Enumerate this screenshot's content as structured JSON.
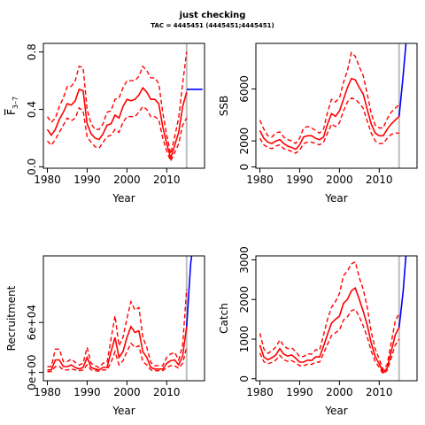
{
  "title": "just checking",
  "subtitle": "TAC = 4445451 (4445451;4445451)",
  "colors": {
    "estimate": "#ff0000",
    "projection": "#0000ff",
    "divider": "#bebebe",
    "axis": "#000000"
  },
  "chart_data": [
    {
      "type": "line",
      "xlabel": "Year",
      "ylabel": "F̅ 3–7",
      "ylabel_main": "F",
      "ylabel_sub": "3–7",
      "xlim": [
        1979,
        2019.5
      ],
      "ylim": [
        -0.01,
        0.86
      ],
      "x_ticks": [
        1980,
        1990,
        2000,
        2010
      ],
      "y_ticks": [
        0.0,
        0.4,
        0.8
      ],
      "y_tick_labels": [
        "0.0",
        "0.4",
        "0.8"
      ],
      "divider_year": 2015,
      "estimate": {
        "x": [
          1980,
          1981,
          1982,
          1983,
          1984,
          1985,
          1986,
          1987,
          1988,
          1989,
          1990,
          1991,
          1992,
          1993,
          1994,
          1995,
          1996,
          1997,
          1998,
          1999,
          2000,
          2001,
          2002,
          2003,
          2004,
          2005,
          2006,
          2007,
          2008,
          2009,
          2010,
          2011,
          2012,
          2013,
          2014,
          2015
        ],
        "mean": [
          0.26,
          0.22,
          0.26,
          0.33,
          0.38,
          0.44,
          0.43,
          0.46,
          0.54,
          0.53,
          0.3,
          0.23,
          0.2,
          0.19,
          0.23,
          0.29,
          0.3,
          0.36,
          0.34,
          0.42,
          0.47,
          0.46,
          0.47,
          0.5,
          0.55,
          0.52,
          0.47,
          0.47,
          0.44,
          0.28,
          0.16,
          0.06,
          0.15,
          0.24,
          0.42,
          0.52
        ],
        "upper": [
          0.35,
          0.31,
          0.34,
          0.42,
          0.48,
          0.56,
          0.56,
          0.6,
          0.7,
          0.69,
          0.4,
          0.3,
          0.26,
          0.26,
          0.3,
          0.38,
          0.39,
          0.47,
          0.48,
          0.55,
          0.6,
          0.6,
          0.6,
          0.63,
          0.7,
          0.67,
          0.62,
          0.62,
          0.58,
          0.38,
          0.22,
          0.09,
          0.21,
          0.34,
          0.58,
          0.8
        ],
        "lower": [
          0.18,
          0.15,
          0.19,
          0.24,
          0.29,
          0.34,
          0.32,
          0.34,
          0.41,
          0.39,
          0.21,
          0.17,
          0.14,
          0.13,
          0.17,
          0.21,
          0.22,
          0.26,
          0.24,
          0.31,
          0.35,
          0.35,
          0.35,
          0.38,
          0.42,
          0.4,
          0.35,
          0.35,
          0.33,
          0.2,
          0.11,
          0.04,
          0.1,
          0.16,
          0.29,
          0.34
        ]
      },
      "projection": {
        "x": [
          2015,
          2019
        ],
        "y": [
          0.54,
          0.54
        ]
      }
    },
    {
      "type": "line",
      "xlabel": "Year",
      "ylabel": "SSB",
      "xlim": [
        1979,
        2019.5
      ],
      "ylim": [
        -100,
        9500
      ],
      "x_ticks": [
        1980,
        1990,
        2000,
        2010
      ],
      "y_ticks": [
        0,
        2000,
        6000
      ],
      "y_tick_labels": [
        "0",
        "2000",
        "6000"
      ],
      "divider_year": 2015,
      "estimate": {
        "x": [
          1980,
          1981,
          1982,
          1983,
          1984,
          1985,
          1986,
          1987,
          1988,
          1989,
          1990,
          1991,
          1992,
          1993,
          1994,
          1995,
          1996,
          1997,
          1998,
          1999,
          2000,
          2001,
          2002,
          2003,
          2004,
          2005,
          2006,
          2007,
          2008,
          2009,
          2010,
          2011,
          2012,
          2013,
          2014,
          2015
        ],
        "mean": [
          2800,
          2200,
          1900,
          1800,
          2000,
          2100,
          1800,
          1600,
          1500,
          1350,
          1700,
          2300,
          2400,
          2400,
          2200,
          2100,
          2300,
          3300,
          4100,
          3900,
          4300,
          5200,
          6100,
          6800,
          6700,
          6100,
          5600,
          4400,
          3300,
          2600,
          2400,
          2400,
          2900,
          3300,
          3600,
          3900
        ],
        "upper": [
          3600,
          2900,
          2400,
          2300,
          2600,
          2700,
          2300,
          2100,
          2000,
          1800,
          2200,
          3000,
          3100,
          3000,
          2800,
          2600,
          2900,
          4200,
          5200,
          5000,
          5300,
          6500,
          7400,
          8800,
          8500,
          7700,
          7000,
          5600,
          4100,
          3200,
          3000,
          3000,
          3700,
          4200,
          4500,
          4800
        ],
        "lower": [
          2200,
          1700,
          1500,
          1400,
          1600,
          1700,
          1400,
          1300,
          1200,
          1050,
          1300,
          1800,
          1900,
          1900,
          1800,
          1700,
          1900,
          2600,
          3300,
          3100,
          3400,
          4300,
          5000,
          5300,
          5200,
          4900,
          4500,
          3500,
          2600,
          2000,
          1800,
          1800,
          2200,
          2500,
          2600,
          2600
        ]
      },
      "projection": {
        "x": [
          2015,
          2016,
          2017
        ],
        "y": [
          3900,
          7000,
          10500
        ]
      }
    },
    {
      "type": "line",
      "xlabel": "Year",
      "ylabel": "Recruitment",
      "xlim": [
        1979,
        2019.5
      ],
      "ylim": [
        -10000,
        140000
      ],
      "x_ticks": [
        1980,
        1990,
        2000,
        2010
      ],
      "y_ticks": [
        0,
        60000
      ],
      "y_tick_labels": [
        "0e+00",
        "6e+04"
      ],
      "divider_year": 2015,
      "estimate": {
        "x": [
          1980,
          1981,
          1982,
          1983,
          1984,
          1985,
          1986,
          1987,
          1988,
          1989,
          1990,
          1991,
          1992,
          1993,
          1994,
          1995,
          1996,
          1997,
          1998,
          1999,
          2000,
          2001,
          2002,
          2003,
          2004,
          2005,
          2006,
          2007,
          2008,
          2009,
          2010,
          2011,
          2012,
          2013,
          2014,
          2015
        ],
        "mean": [
          3000,
          3000,
          15000,
          15000,
          7000,
          7000,
          9000,
          6000,
          4000,
          6000,
          18000,
          6000,
          4000,
          3000,
          6000,
          6000,
          25000,
          42000,
          18000,
          25000,
          42000,
          55000,
          48000,
          50000,
          25000,
          18000,
          6000,
          4000,
          4000,
          4000,
          11000,
          14000,
          15000,
          9000,
          20000,
          55000
        ],
        "upper": [
          7000,
          7000,
          28000,
          28000,
          13000,
          13000,
          16000,
          12000,
          9000,
          11000,
          30000,
          11000,
          8000,
          6000,
          11000,
          12000,
          40000,
          68000,
          32000,
          42000,
          65000,
          85000,
          75000,
          78000,
          42000,
          30000,
          12000,
          8000,
          8000,
          8000,
          18000,
          22000,
          24000,
          15000,
          33000,
          100000
        ],
        "lower": [
          1000,
          1000,
          7000,
          7000,
          3000,
          3000,
          4000,
          3000,
          2000,
          3000,
          9000,
          3000,
          2000,
          1500,
          3000,
          3000,
          12000,
          25000,
          9000,
          14000,
          25000,
          35000,
          30000,
          32000,
          13000,
          9000,
          3000,
          2000,
          2000,
          2000,
          6000,
          8000,
          8000,
          5000,
          11000,
          30000
        ]
      },
      "projection": {
        "x": [
          2015,
          2016,
          2017
        ],
        "y": [
          55000,
          130000,
          170000
        ]
      }
    },
    {
      "type": "line",
      "xlabel": "Year",
      "ylabel": "Catch",
      "xlim": [
        1979,
        2019.5
      ],
      "ylim": [
        -50,
        3100
      ],
      "x_ticks": [
        1980,
        1990,
        2000,
        2010
      ],
      "y_ticks": [
        0,
        1000,
        2000,
        3000
      ],
      "y_tick_labels": [
        "0",
        "1000",
        "2000",
        "3000"
      ],
      "divider_year": 2015,
      "estimate": {
        "x": [
          1980,
          1981,
          1982,
          1983,
          1984,
          1985,
          1986,
          1987,
          1988,
          1989,
          1990,
          1991,
          1992,
          1993,
          1994,
          1995,
          1996,
          1997,
          1998,
          1999,
          2000,
          2001,
          2002,
          2003,
          2004,
          2005,
          2006,
          2007,
          2008,
          2009,
          2010,
          2011,
          2012,
          2013,
          2014,
          2015
        ],
        "mean": [
          850,
          550,
          480,
          530,
          600,
          760,
          620,
          570,
          600,
          520,
          420,
          420,
          470,
          460,
          550,
          550,
          820,
          1120,
          1400,
          1500,
          1580,
          1900,
          2000,
          2220,
          2290,
          2000,
          1700,
          1350,
          900,
          560,
          380,
          160,
          270,
          680,
          1100,
          1300
        ],
        "upper": [
          1150,
          750,
          640,
          700,
          800,
          980,
          830,
          760,
          780,
          690,
          560,
          560,
          630,
          620,
          730,
          720,
          1100,
          1500,
          1800,
          1950,
          2150,
          2600,
          2720,
          2900,
          2950,
          2550,
          2250,
          1800,
          1180,
          750,
          500,
          220,
          360,
          900,
          1450,
          1650
        ],
        "lower": [
          650,
          430,
          380,
          410,
          470,
          590,
          480,
          440,
          460,
          400,
          330,
          330,
          370,
          360,
          420,
          420,
          640,
          870,
          1090,
          1160,
          1230,
          1480,
          1560,
          1720,
          1750,
          1560,
          1330,
          1050,
          700,
          430,
          290,
          120,
          210,
          520,
          850,
          1000
        ]
      },
      "projection": {
        "x": [
          2015,
          2016,
          2017
        ],
        "y": [
          1300,
          2200,
          3500
        ]
      }
    }
  ]
}
